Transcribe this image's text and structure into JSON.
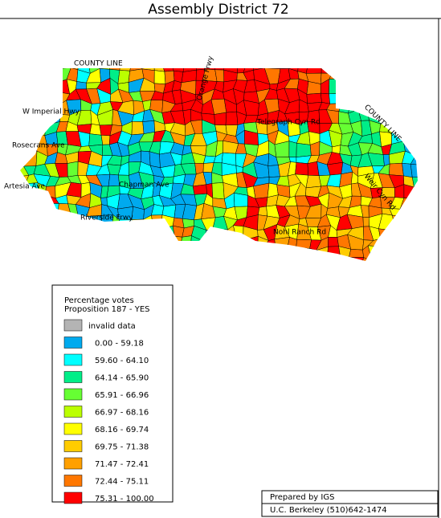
{
  "title": "Assembly District 72",
  "roads": [
    "COUNTY LINE",
    "W Imperial Hwy",
    "Rosecrans Ave",
    "Artesia Ave",
    "Chapman Ave",
    "Riverside Frwy",
    "Telegraph Cyn Rd",
    "Nohl Ranch Rd",
    "Orange Frwy",
    "COUNTY LINE",
    "Weir Cyn Rd"
  ],
  "legend": {
    "title": [
      "Percentage votes",
      "Proposition 187 - YES"
    ],
    "items": [
      {
        "label": "invalid data",
        "color": "#b4b4b4"
      },
      {
        "label": "0.00 - 59.18",
        "color": "#00aaee"
      },
      {
        "label": "59.60 - 64.10",
        "color": "#00ffff"
      },
      {
        "label": "64.14 - 65.90",
        "color": "#00ee88"
      },
      {
        "label": "65.91 - 66.96",
        "color": "#66ff33"
      },
      {
        "label": "66.97 - 68.16",
        "color": "#bbff00"
      },
      {
        "label": "68.16 - 69.74",
        "color": "#ffff00"
      },
      {
        "label": "69.75 - 71.38",
        "color": "#ffcc00"
      },
      {
        "label": "71.47 - 72.41",
        "color": "#ffa000"
      },
      {
        "label": "72.44 - 75.11",
        "color": "#ff7700"
      },
      {
        "label": "75.31 - 100.00",
        "color": "#ff0000"
      }
    ]
  },
  "credits": [
    "Prepared by IGS",
    "U.C. Berkeley  (510)642-1474"
  ]
}
